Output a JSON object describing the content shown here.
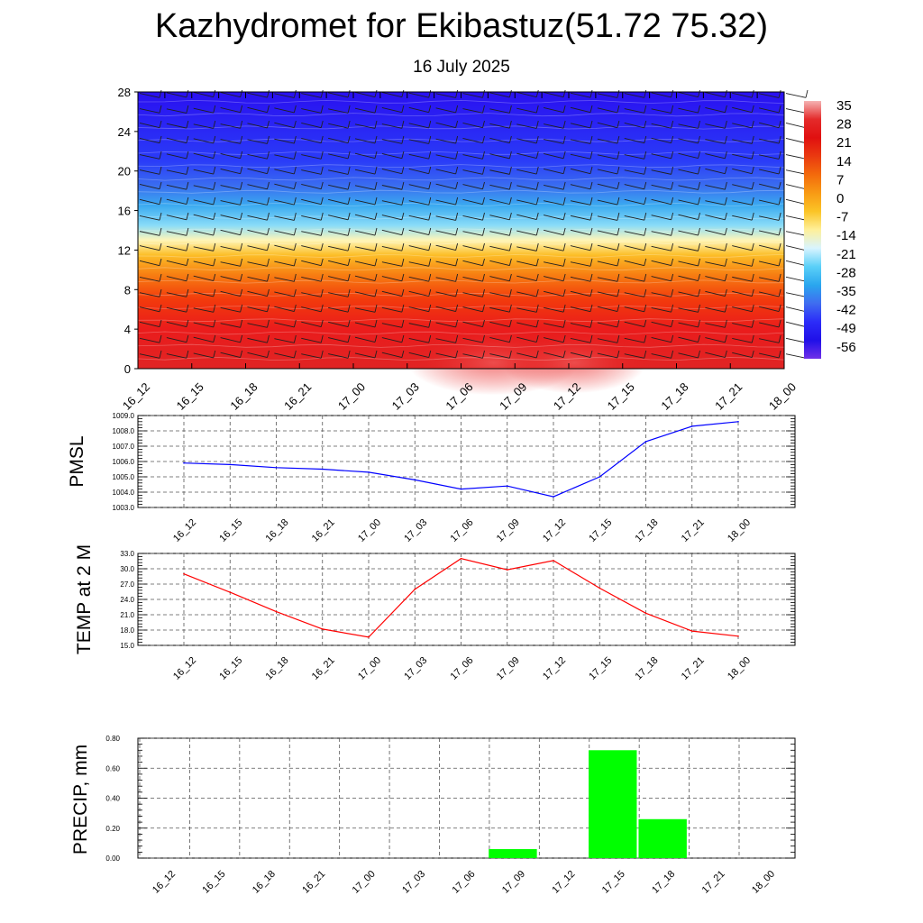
{
  "title": "Kazhydromet for Ekibastuz(51.72 75.32)",
  "subtitle": "16 July 2025",
  "time_labels": [
    "16_12",
    "16_15",
    "16_18",
    "16_21",
    "17_00",
    "17_03",
    "17_06",
    "17_09",
    "17_12",
    "17_15",
    "17_18",
    "17_21",
    "18_00"
  ],
  "chart_data": [
    {
      "type": "heatmap",
      "name": "vertical-section",
      "x": [
        "16_12",
        "16_15",
        "16_18",
        "16_21",
        "17_00",
        "17_03",
        "17_06",
        "17_09",
        "17_12",
        "17_15",
        "17_18",
        "17_21",
        "18_00"
      ],
      "ylim": [
        0,
        28
      ],
      "yticks": [
        0,
        4,
        8,
        12,
        16,
        20,
        24,
        28
      ],
      "colorbar": {
        "labels": [
          "35",
          "28",
          "21",
          "14",
          "7",
          "0",
          "-7",
          "-14",
          "-21",
          "-28",
          "-35",
          "-42",
          "-49",
          "-56"
        ],
        "colors": [
          "#f5b3b3",
          "#e42a2a",
          "#e01010",
          "#ea3a10",
          "#f36a0c",
          "#f89a14",
          "#fbc426",
          "#fef09a",
          "#d8f4ff",
          "#5ad0f8",
          "#2aa6ee",
          "#3f6cf0",
          "#2c2cf8",
          "#2010e8",
          "#7030e8"
        ]
      },
      "profile": [
        {
          "level": 0,
          "value": 31,
          "color": "#e02424"
        },
        {
          "level": 4,
          "value": 24,
          "color": "#ea1c1c"
        },
        {
          "level": 7,
          "value": 18,
          "color": "#f23a0c"
        },
        {
          "level": 9.5,
          "value": 10,
          "color": "#f77e12"
        },
        {
          "level": 11.5,
          "value": 2,
          "color": "#fcbe28"
        },
        {
          "level": 13,
          "value": -8,
          "color": "#fff6b8"
        },
        {
          "level": 14.5,
          "value": -20,
          "color": "#8adcf8"
        },
        {
          "level": 16.5,
          "value": -30,
          "color": "#3aaaf0"
        },
        {
          "level": 18.5,
          "value": -40,
          "color": "#3a6ef0"
        },
        {
          "level": 21,
          "value": -48,
          "color": "#2a3cf8"
        },
        {
          "level": 28,
          "value": -56,
          "color": "#2a10f0"
        }
      ]
    },
    {
      "type": "line",
      "name": "pmsl",
      "ylabel": "PMSL",
      "x": [
        "16_12",
        "16_15",
        "16_18",
        "16_21",
        "17_00",
        "17_03",
        "17_06",
        "17_09",
        "17_12",
        "17_15",
        "17_18",
        "17_21",
        "18_00"
      ],
      "values": [
        1005.9,
        1005.8,
        1005.6,
        1005.5,
        1005.3,
        1004.8,
        1004.2,
        1004.4,
        1003.7,
        1005.0,
        1007.3,
        1008.3,
        1008.6
      ],
      "ylim": [
        1003.0,
        1009.0
      ],
      "yticks": [
        "1003.0",
        "1004.0",
        "1005.0",
        "1006.0",
        "1007.0",
        "1008.0",
        "1009.0"
      ],
      "color": "#0000ff",
      "grid": true
    },
    {
      "type": "line",
      "name": "temp2m",
      "ylabel": "TEMP at 2 M",
      "x": [
        "16_12",
        "16_15",
        "16_18",
        "16_21",
        "17_00",
        "17_03",
        "17_06",
        "17_09",
        "17_12",
        "17_15",
        "17_18",
        "17_21",
        "18_00"
      ],
      "values": [
        29.0,
        25.4,
        21.6,
        18.2,
        16.6,
        26.0,
        32.0,
        29.8,
        31.6,
        26.2,
        21.3,
        17.8,
        16.8
      ],
      "ylim": [
        15.0,
        33.0
      ],
      "yticks": [
        "15.0",
        "18.0",
        "21.0",
        "24.0",
        "27.0",
        "30.0",
        "33.0"
      ],
      "color": "#ff0000",
      "grid": true
    },
    {
      "type": "bar",
      "name": "precip",
      "ylabel": "PRECIP, mm",
      "categories": [
        "16_12",
        "16_15",
        "16_18",
        "16_21",
        "17_00",
        "17_03",
        "17_06",
        "17_09",
        "17_12",
        "17_15",
        "17_18",
        "17_21",
        "18_00"
      ],
      "values": [
        0,
        0,
        0,
        0,
        0,
        0,
        0,
        0.06,
        0,
        0.72,
        0.26,
        0,
        0
      ],
      "ylim": [
        0,
        0.8
      ],
      "yticks": [
        "0.00",
        "0.20",
        "0.40",
        "0.60",
        "0.80"
      ],
      "color": "#00ff00",
      "grid": true
    }
  ]
}
